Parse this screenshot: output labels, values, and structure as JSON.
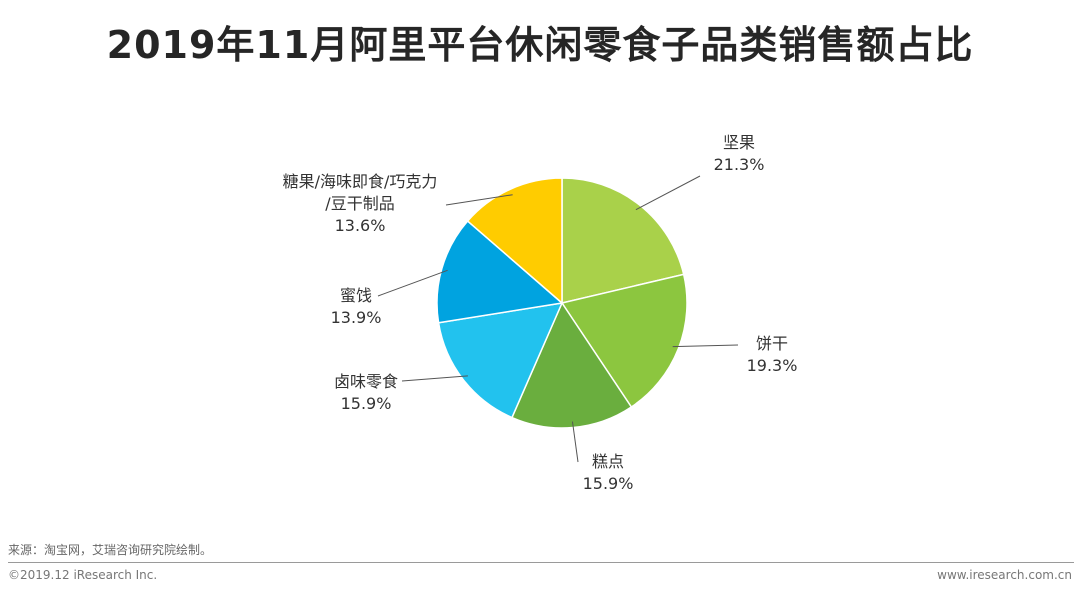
{
  "title": "2019年11月阿里平台休闲零食子品类销售额占比",
  "chart_data": {
    "type": "pie",
    "title": "2019年11月阿里平台休闲零食子品类销售额占比",
    "slices": [
      {
        "label": "坚果",
        "value": 21.3,
        "display": "21.3%",
        "color": "#A9D14A"
      },
      {
        "label": "饼干",
        "value": 19.3,
        "display": "19.3%",
        "color": "#8CC63F"
      },
      {
        "label": "糕点",
        "value": 15.9,
        "display": "15.9%",
        "color": "#6AAE3E"
      },
      {
        "label": "卤味零食",
        "value": 15.9,
        "display": "15.9%",
        "color": "#22C2EE"
      },
      {
        "label": "蜜饯",
        "value": 13.9,
        "display": "13.9%",
        "color": "#00A3E0"
      },
      {
        "label": "糖果/海味即食/巧克力/豆干制品",
        "label_lines": [
          "糖果/海味即食/巧克力",
          "/豆干制品"
        ],
        "value": 13.6,
        "display": "13.6%",
        "color": "#FFCC00"
      }
    ]
  },
  "source": "来源：淘宝网，艾瑞咨询研究院绘制。",
  "copyright": "©2019.12 iResearch Inc.",
  "website": "www.iresearch.com.cn"
}
